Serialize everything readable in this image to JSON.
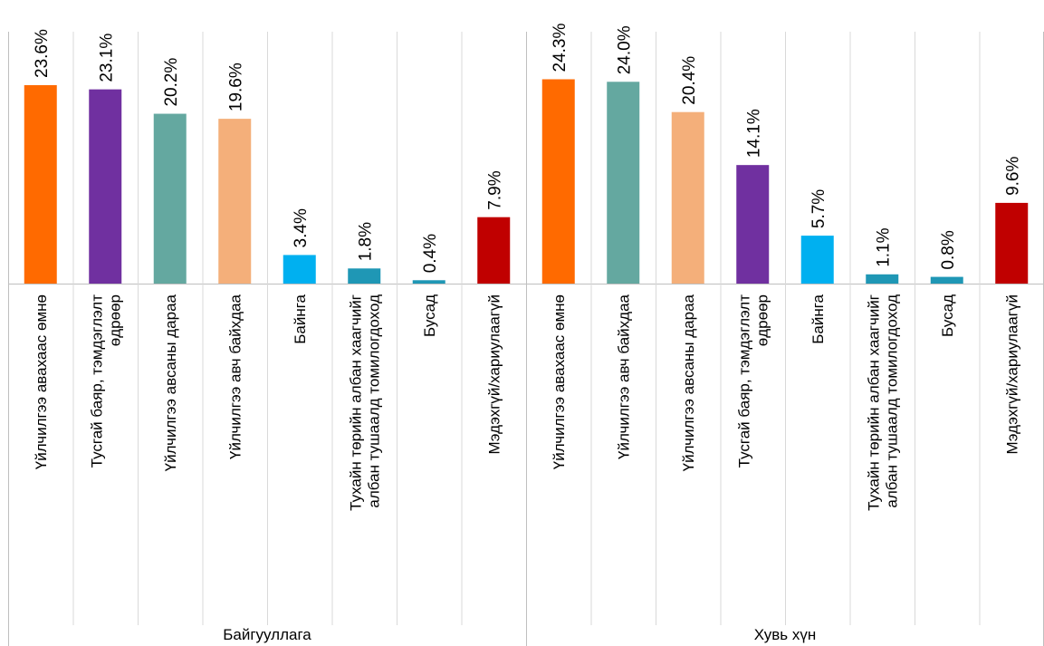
{
  "chart_data": {
    "type": "bar",
    "ylim": [
      0,
      30
    ],
    "grid": false,
    "legend": "none",
    "groups": [
      {
        "label": "Байгууллага",
        "bars": [
          {
            "lines": [
              "Үйлчилгээ авахаас өмнө"
            ],
            "value": 23.6,
            "label": "23.6%",
            "color": "#FF6A00"
          },
          {
            "lines": [
              "Тусгай баяр, тэмдэглэлт",
              "өдрөөр"
            ],
            "value": 23.1,
            "label": "23.1%",
            "color": "#7030A0"
          },
          {
            "lines": [
              "Үйлчилгээ авсаны дараа"
            ],
            "value": 20.2,
            "label": "20.2%",
            "color": "#64A8A0"
          },
          {
            "lines": [
              "Үйлчилгээ авч байхдаа"
            ],
            "value": 19.6,
            "label": "19.6%",
            "color": "#F4AF7A"
          },
          {
            "lines": [
              "Байнга"
            ],
            "value": 3.4,
            "label": "3.4%",
            "color": "#00B0F0"
          },
          {
            "lines": [
              "Тухайн төрийн албан хаагчийг",
              "албан тушаалд томилогдоход"
            ],
            "value": 1.8,
            "label": "1.8%",
            "color": "#1F97B5"
          },
          {
            "lines": [
              "Бусад"
            ],
            "value": 0.4,
            "label": "0.4%",
            "color": "#1F97B5"
          },
          {
            "lines": [
              "Мэдэхгүй/хариулаагүй"
            ],
            "value": 7.9,
            "label": "7.9%",
            "color": "#C00000"
          }
        ]
      },
      {
        "label": "Хувь хүн",
        "bars": [
          {
            "lines": [
              "Үйлчилгээ авахаас өмнө"
            ],
            "value": 24.3,
            "label": "24.3%",
            "color": "#FF6A00"
          },
          {
            "lines": [
              "Үйлчилгээ авч байхдаа"
            ],
            "value": 24.0,
            "label": "24.0%",
            "color": "#64A8A0"
          },
          {
            "lines": [
              "Үйлчилгээ авсаны дараа"
            ],
            "value": 20.4,
            "label": "20.4%",
            "color": "#F4AF7A"
          },
          {
            "lines": [
              "Тусгай баяр, тэмдэглэлт",
              "өдрөөр"
            ],
            "value": 14.1,
            "label": "14.1%",
            "color": "#7030A0"
          },
          {
            "lines": [
              "Байнга"
            ],
            "value": 5.7,
            "label": "5.7%",
            "color": "#00B0F0"
          },
          {
            "lines": [
              "Тухайн төрийн албан хаагчийг",
              "албан тушаалд томилогдоход"
            ],
            "value": 1.1,
            "label": "1.1%",
            "color": "#1F97B5"
          },
          {
            "lines": [
              "Бусад"
            ],
            "value": 0.8,
            "label": "0.8%",
            "color": "#1F97B5"
          },
          {
            "lines": [
              "Мэдэхгүй/хариулаагүй"
            ],
            "value": 9.6,
            "label": "9.6%",
            "color": "#C00000"
          }
        ]
      }
    ]
  }
}
